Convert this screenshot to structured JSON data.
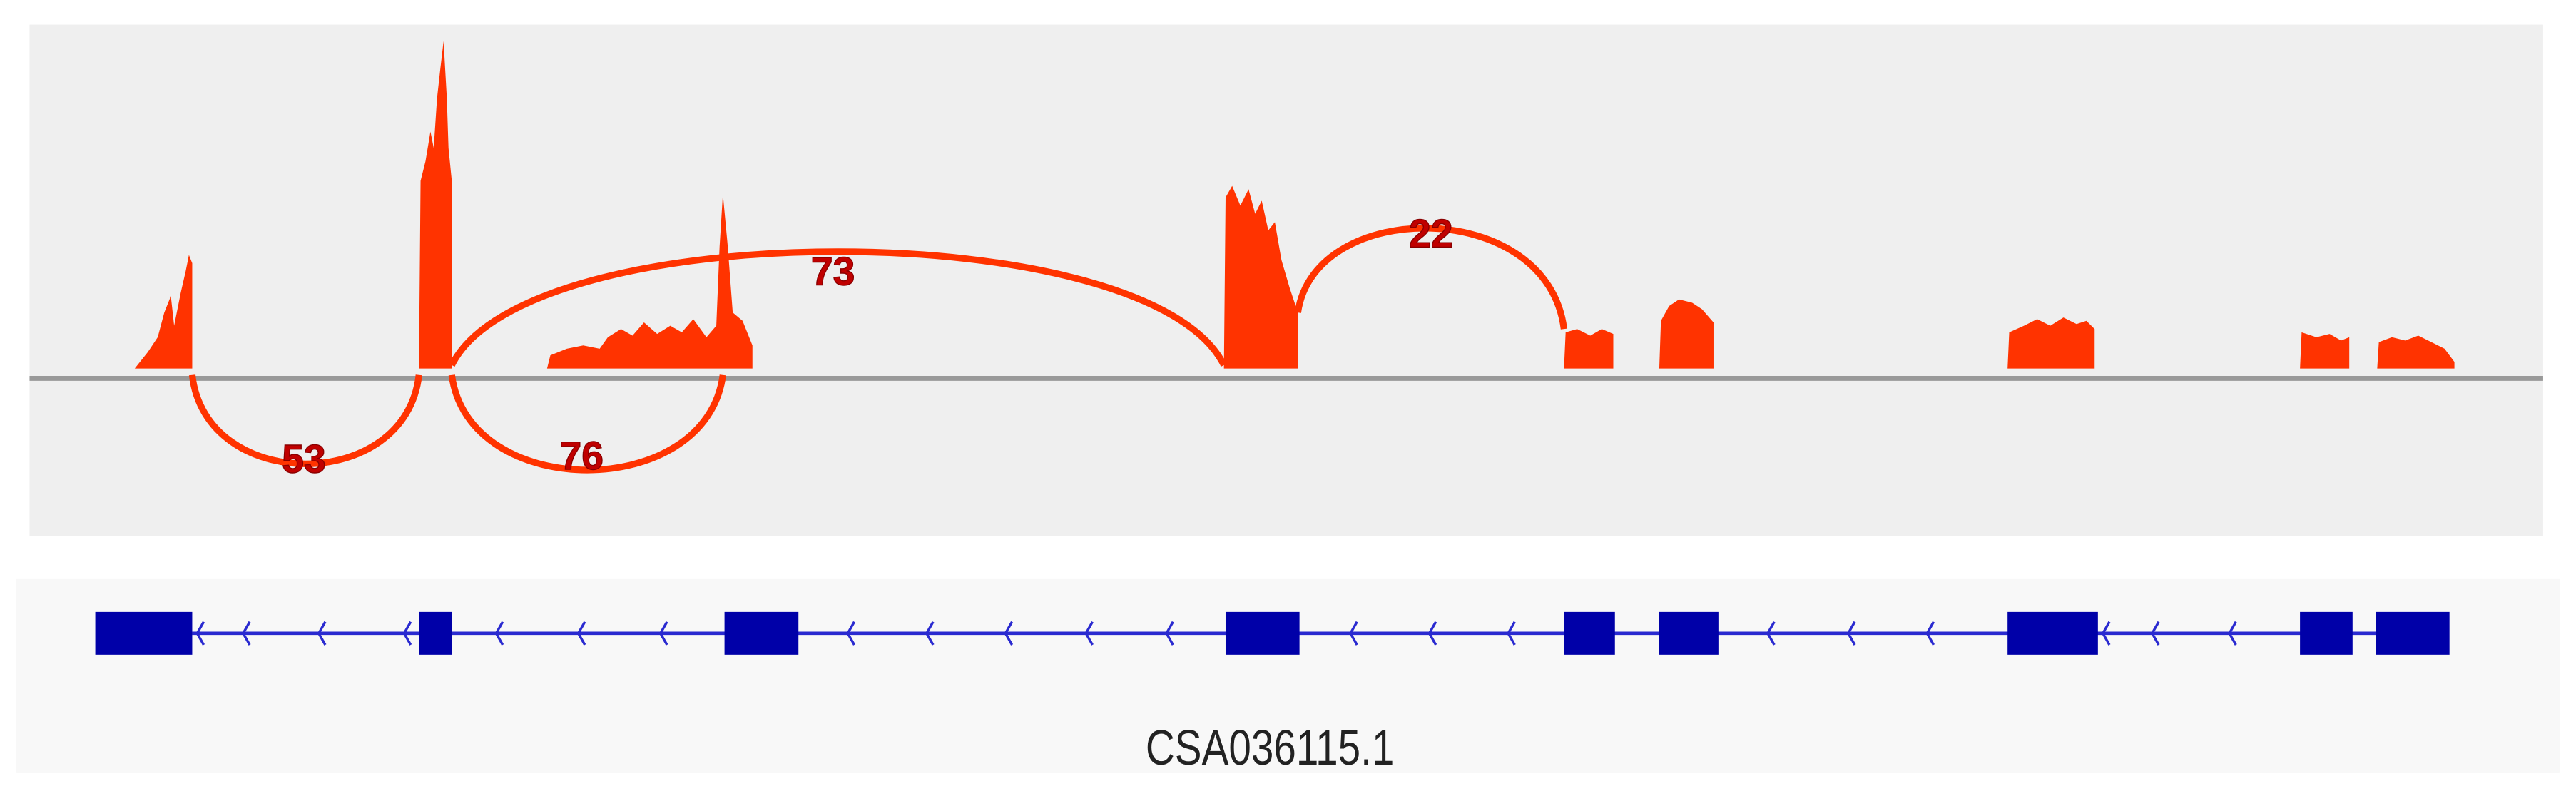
{
  "junctions": [
    {
      "count": 53
    },
    {
      "count": 76
    },
    {
      "count": 73
    },
    {
      "count": 22
    }
  ],
  "gene": {
    "name": "CSA036115.1"
  }
}
